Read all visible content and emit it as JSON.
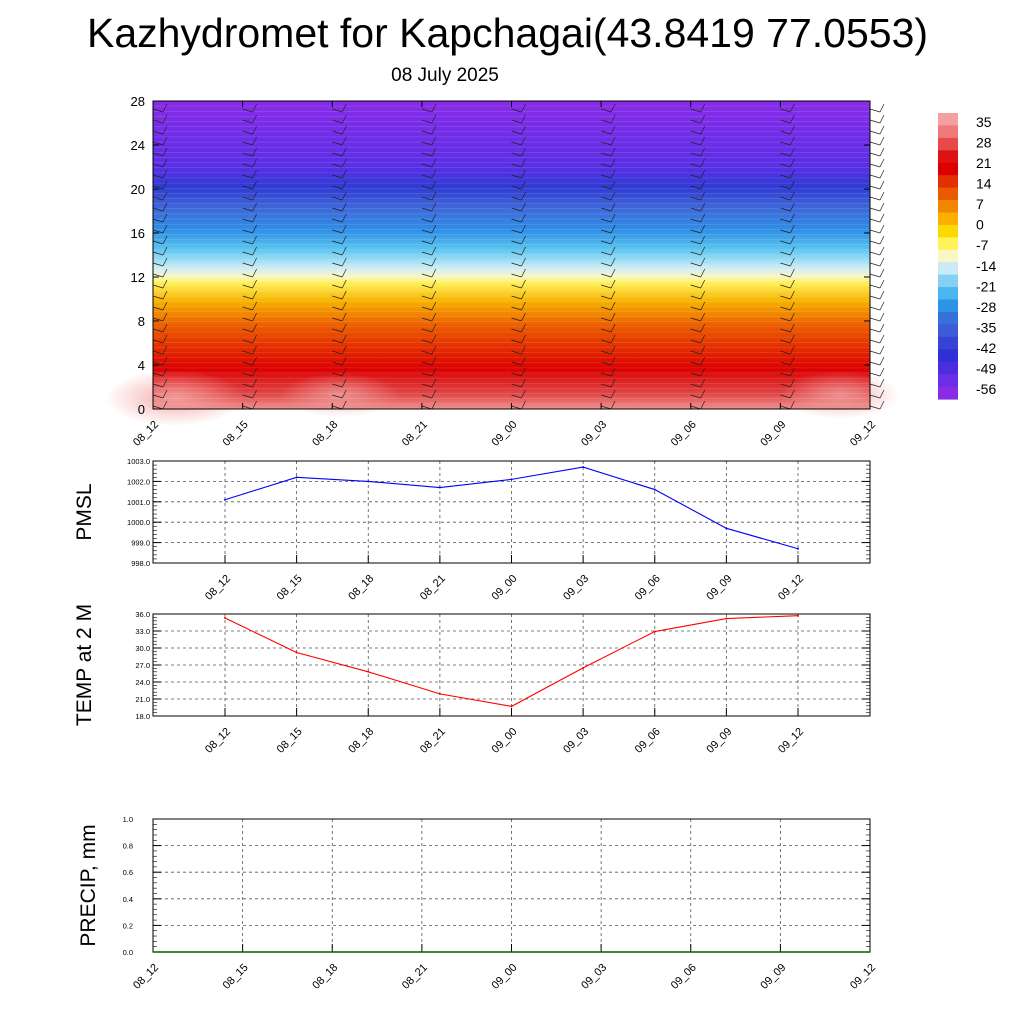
{
  "title": "Kazhydromet for Kapchagai(43.8419 77.0553)",
  "subtitle": "08 July 2025",
  "time_labels": [
    "08_12",
    "08_15",
    "08_18",
    "08_21",
    "09_00",
    "09_03",
    "09_06",
    "09_09",
    "09_12"
  ],
  "colorbar": {
    "labels": [
      "35",
      "28",
      "21",
      "14",
      "7",
      "0",
      "-7",
      "-14",
      "-21",
      "-28",
      "-35",
      "-42",
      "-49",
      "-56"
    ]
  },
  "chart_data": [
    {
      "type": "heatmap",
      "name": "vertical cross-section",
      "x_ticks": [
        "08_12",
        "08_15",
        "08_18",
        "08_21",
        "09_00",
        "09_03",
        "09_06",
        "09_09",
        "09_12"
      ],
      "y_ticks": [
        0,
        4,
        8,
        12,
        16,
        20,
        24,
        28
      ],
      "ylim": [
        0,
        28
      ],
      "color_range": [
        -56,
        35
      ],
      "grid": false
    },
    {
      "type": "line",
      "ylabel": "PMSL",
      "x": [
        "08_12",
        "08_15",
        "08_18",
        "08_21",
        "09_00",
        "09_03",
        "09_06",
        "09_09",
        "09_12"
      ],
      "values": [
        1001.1,
        1002.2,
        1002.0,
        1001.7,
        1002.1,
        1002.7,
        1001.6,
        999.7,
        998.7
      ],
      "y_ticks": [
        "998.0",
        "999.0",
        "1000.0",
        "1001.0",
        "1002.0",
        "1003.0"
      ],
      "ylim": [
        998,
        1003
      ],
      "color": "#0000ff",
      "grid": true
    },
    {
      "type": "line",
      "ylabel": "TEMP at 2 M",
      "x": [
        "08_12",
        "08_15",
        "08_18",
        "08_21",
        "09_00",
        "09_03",
        "09_06",
        "09_09",
        "09_12"
      ],
      "values": [
        35.3,
        29.2,
        25.8,
        21.9,
        19.7,
        26.5,
        32.9,
        35.2,
        35.7
      ],
      "y_ticks": [
        "18.0",
        "21.0",
        "24.0",
        "27.0",
        "30.0",
        "33.0",
        "36.0"
      ],
      "ylim": [
        18,
        36
      ],
      "color": "#ff0000",
      "grid": true
    },
    {
      "type": "line",
      "ylabel": "PRECIP, mm",
      "x": [
        "08_12",
        "08_15",
        "08_18",
        "08_21",
        "09_00",
        "09_03",
        "09_06",
        "09_09",
        "09_12"
      ],
      "values": [
        0,
        0,
        0,
        0,
        0,
        0,
        0,
        0,
        0
      ],
      "y_ticks": [
        "0.0",
        "0.2",
        "0.4",
        "0.6",
        "0.8",
        "1.0"
      ],
      "ylim": [
        0,
        1
      ],
      "color": "#006400",
      "grid": true
    }
  ]
}
